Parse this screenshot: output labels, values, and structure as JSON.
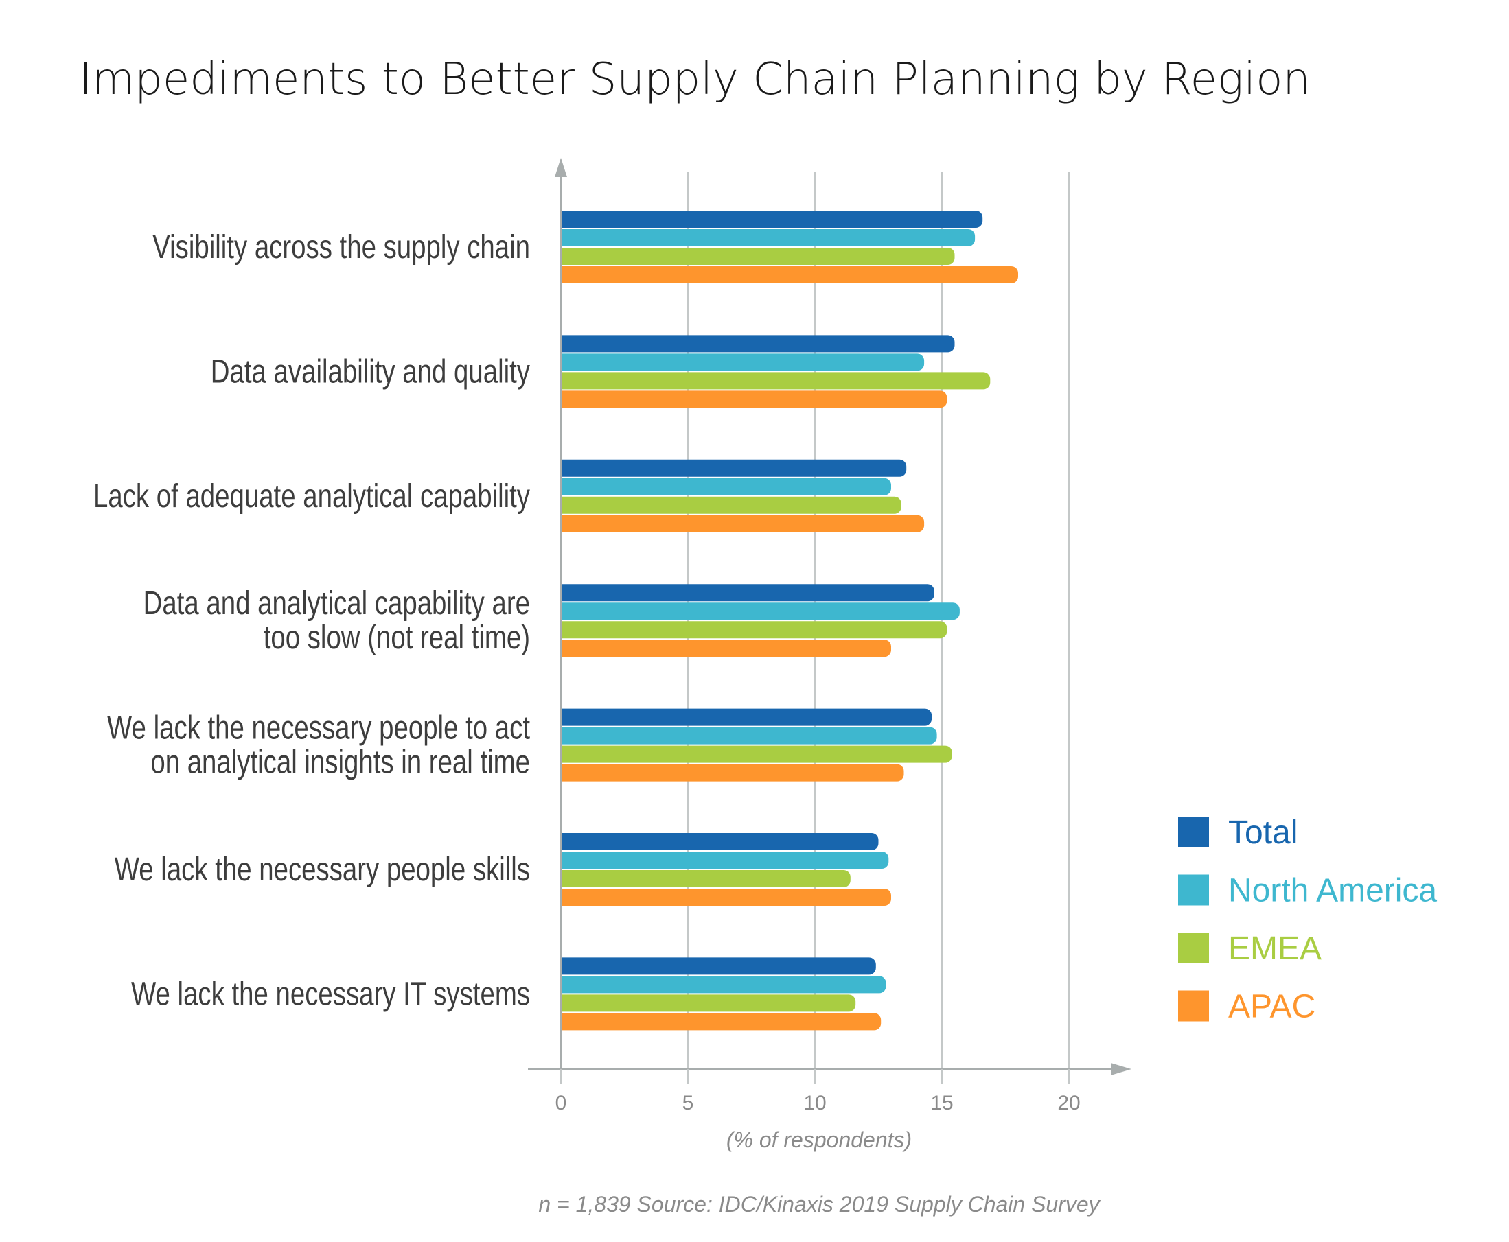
{
  "chart_data": {
    "type": "bar",
    "orientation": "horizontal",
    "title": "Impediments to Better Supply Chain Planning by Region",
    "xlabel": "(% of respondents)",
    "ylabel": "",
    "xlim": [
      0,
      20
    ],
    "xticks": [
      "0",
      "5",
      "10",
      "15",
      "20"
    ],
    "grid": true,
    "legend_position": "right",
    "categories": [
      [
        "Visibility across the supply chain"
      ],
      [
        "Data availability and quality"
      ],
      [
        "Lack of adequate analytical capability"
      ],
      [
        "Data and analytical capability are",
        "too slow (not real time)"
      ],
      [
        "We lack the necessary people to act",
        "on analytical insights in real time"
      ],
      [
        "We lack the necessary people skills"
      ],
      [
        "We lack the necessary IT systems"
      ]
    ],
    "series": [
      {
        "name": "Total",
        "color": "#1866ae",
        "values": [
          16.6,
          15.5,
          13.6,
          14.7,
          14.6,
          12.5,
          12.4
        ]
      },
      {
        "name": "North America",
        "color": "#3eb7cf",
        "values": [
          16.3,
          14.3,
          13.0,
          15.7,
          14.8,
          12.9,
          12.8
        ]
      },
      {
        "name": "EMEA",
        "color": "#a9cd42",
        "values": [
          15.5,
          16.9,
          13.4,
          15.2,
          15.4,
          11.4,
          11.6
        ]
      },
      {
        "name": "APAC",
        "color": "#fe952d",
        "values": [
          18.0,
          15.2,
          14.3,
          13.0,
          13.5,
          13.0,
          12.6
        ]
      }
    ],
    "source": "n = 1,839  Source: IDC/Kinaxis 2019 Supply Chain Survey"
  }
}
